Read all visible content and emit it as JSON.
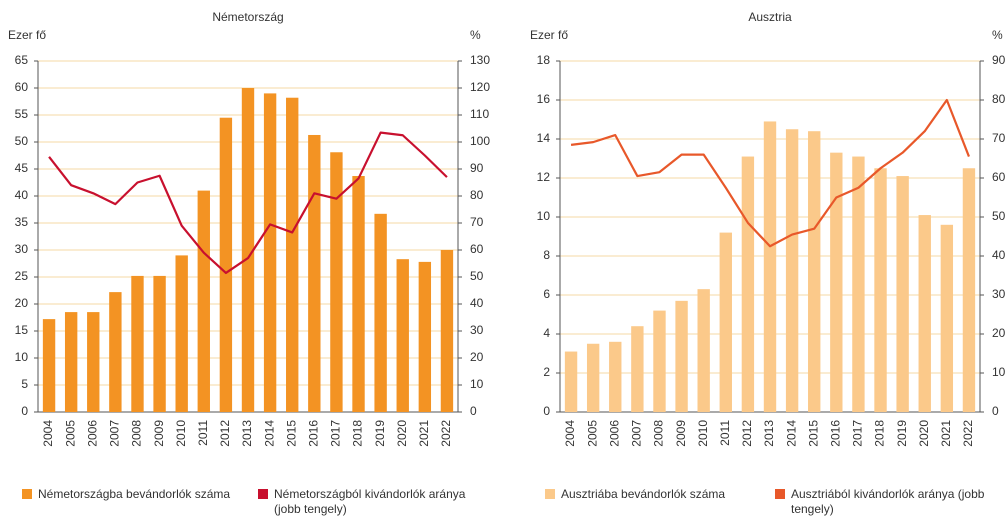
{
  "chart_data": [
    {
      "type": "bar_line",
      "title": "Németország",
      "y_label": "Ezer fő",
      "y2_label": "%",
      "categories": [
        "2004",
        "2005",
        "2006",
        "2007",
        "2008",
        "2009",
        "2010",
        "2011",
        "2012",
        "2013",
        "2014",
        "2015",
        "2016",
        "2017",
        "2018",
        "2019",
        "2020",
        "2021",
        "2022"
      ],
      "ylim": [
        0,
        65
      ],
      "yticks": [
        0,
        5,
        10,
        15,
        20,
        25,
        30,
        35,
        40,
        45,
        50,
        55,
        60,
        65
      ],
      "y2lim": [
        0,
        130
      ],
      "y2ticks": [
        0,
        10,
        20,
        30,
        40,
        50,
        60,
        70,
        80,
        90,
        100,
        110,
        120,
        130
      ],
      "grid": true,
      "series": [
        {
          "name": "Németországba bevándorlók száma",
          "kind": "bar",
          "color": "#f39323",
          "values": [
            17.2,
            18.5,
            18.5,
            22.2,
            25.2,
            25.2,
            29.0,
            41.0,
            54.5,
            60.0,
            59.0,
            58.2,
            51.3,
            48.1,
            43.7,
            36.7,
            28.3,
            27.8,
            30.0
          ]
        },
        {
          "name": "Németországból kivándorlók aránya (jobb tengely)",
          "kind": "line",
          "axis": "y2",
          "color": "#c8102e",
          "values": [
            94.5,
            84,
            81,
            77,
            85,
            87.5,
            69,
            59,
            51.5,
            57,
            69.5,
            66.5,
            81,
            79,
            86.5,
            103.5,
            102.5,
            95,
            87
          ]
        }
      ]
    },
    {
      "type": "bar_line",
      "title": "Ausztria",
      "y_label": "Ezer fő",
      "y2_label": "%",
      "categories": [
        "2004",
        "2005",
        "2006",
        "2007",
        "2008",
        "2009",
        "2010",
        "2011",
        "2012",
        "2013",
        "2014",
        "2015",
        "2016",
        "2017",
        "2018",
        "2019",
        "2020",
        "2021",
        "2022"
      ],
      "ylim": [
        0,
        18
      ],
      "yticks": [
        0,
        2,
        4,
        6,
        8,
        10,
        12,
        14,
        16,
        18
      ],
      "y2lim": [
        0,
        90
      ],
      "y2ticks": [
        0,
        10,
        20,
        30,
        40,
        50,
        60,
        70,
        80,
        90
      ],
      "grid": true,
      "series": [
        {
          "name": "Ausztriába bevándorlók száma",
          "kind": "bar",
          "color": "#fbc98a",
          "values": [
            3.1,
            3.5,
            3.6,
            4.4,
            5.2,
            5.7,
            6.3,
            9.2,
            13.1,
            14.9,
            14.5,
            14.4,
            13.3,
            13.1,
            12.5,
            12.1,
            10.1,
            9.6,
            12.5
          ]
        },
        {
          "name": "Ausztriából kivándorlók aránya (jobb tengely)",
          "kind": "line",
          "axis": "y2",
          "color": "#e8582a",
          "values": [
            68.5,
            69.2,
            71,
            60.5,
            61.5,
            66,
            66,
            57.5,
            48.5,
            42.5,
            45.5,
            47,
            55,
            57.5,
            62.5,
            66.5,
            72,
            80,
            65.5
          ]
        }
      ]
    }
  ]
}
